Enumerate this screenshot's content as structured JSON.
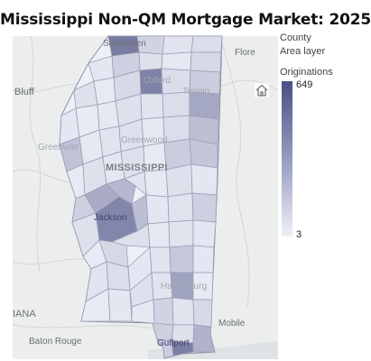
{
  "title": "Mississippi Non-QM Mortgage Market: 2025",
  "legend": {
    "layer_name": "County",
    "layer_type": "Area layer",
    "measure": "Originations",
    "max": "649",
    "min": "3",
    "ramp_colors": [
      "#4b4f82",
      "#eef0f8"
    ]
  },
  "places": {
    "southaven": "Southaven",
    "oxford": "Oxford",
    "tupelo": "Tupelo",
    "bluff": "Bluff",
    "greenville": "Greenville",
    "greenwood": "Greenwood",
    "state": "MISSISSIPPI",
    "jackson": "Jackson",
    "hattiesburg": "Hattiesburg",
    "iana": "IANA",
    "baton_rouge": "Baton Rouge",
    "mobile": "Mobile",
    "gulfport": "Gulfport",
    "florence": "Flore"
  },
  "colors": {
    "map_background": "#eceeee",
    "county_lightest": "#eef0f8",
    "county_darkest": "#4b4f82",
    "county_border": "#9a9db5"
  },
  "icons": {
    "reset": "home-icon"
  }
}
